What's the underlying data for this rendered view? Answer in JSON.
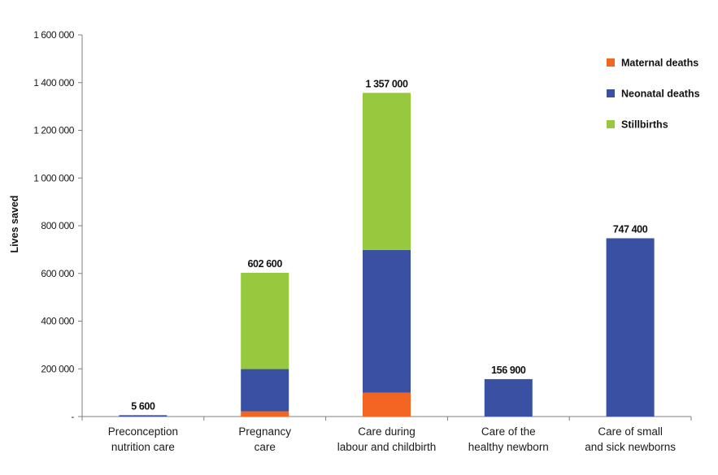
{
  "chart_data": {
    "type": "bar",
    "stacked": true,
    "ylabel": "Lives saved",
    "ylim": [
      0,
      1600000
    ],
    "y_ticks": [
      {
        "value": 0,
        "label": "-"
      },
      {
        "value": 200000,
        "label": "200 000"
      },
      {
        "value": 400000,
        "label": "400 000"
      },
      {
        "value": 600000,
        "label": "600 000"
      },
      {
        "value": 800000,
        "label": "800 000"
      },
      {
        "value": 1000000,
        "label": "1 000 000"
      },
      {
        "value": 1200000,
        "label": "1 200 000"
      },
      {
        "value": 1400000,
        "label": "1 400 000"
      },
      {
        "value": 1600000,
        "label": "1 600 000"
      }
    ],
    "categories": [
      [
        "Preconception",
        "nutrition care"
      ],
      [
        "Pregnancy",
        "care"
      ],
      [
        "Care during",
        "labour and childbirth"
      ],
      [
        "Care of the",
        "healthy newborn"
      ],
      [
        "Care of small",
        "and sick newborns"
      ]
    ],
    "series": [
      {
        "name": "Maternal deaths",
        "color": "#f26522",
        "values": [
          0,
          22000,
          100000,
          0,
          0
        ]
      },
      {
        "name": "Neonatal deaths",
        "color": "#3a51a3",
        "values": [
          5600,
          177000,
          598000,
          156900,
          747400
        ]
      },
      {
        "name": "Stillbirths",
        "color": "#96c93d",
        "values": [
          0,
          403600,
          659000,
          0,
          0
        ]
      }
    ],
    "totals": [
      "5 600",
      "602 600",
      "1 357 000",
      "156 900",
      "747 400"
    ],
    "legend_position": "top-right",
    "grid": false
  }
}
